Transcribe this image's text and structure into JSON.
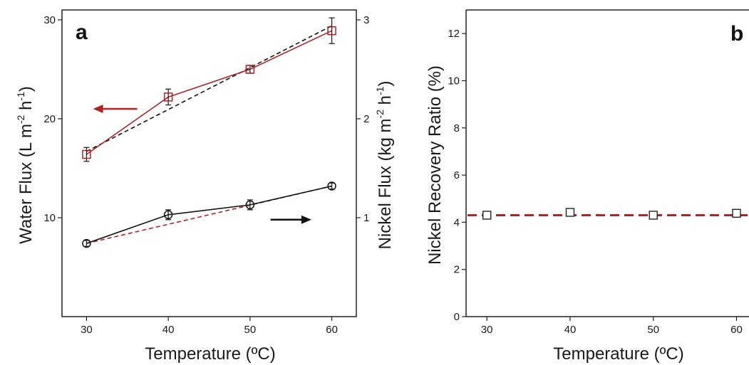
{
  "chart_data": [
    {
      "type": "line",
      "panel_label": "a",
      "xlabel": "Temperature (ºC)",
      "ylabel_left": {
        "main": "Water Flux (L m",
        "sup1": "-2",
        "mid": " h",
        "sup2": "-1",
        "end": ")"
      },
      "ylabel_right": {
        "main": "Nickel Flux (kg m",
        "sup1": "-2",
        "mid": " h",
        "sup2": "-1",
        "end": ")"
      },
      "xlim": [
        27,
        63
      ],
      "ylim_left": [
        0,
        31
      ],
      "ylim_right": [
        0,
        3.1
      ],
      "x_ticks": [
        30,
        40,
        50,
        60
      ],
      "y_left_ticks": [
        10,
        20,
        30
      ],
      "y_right_ticks": [
        1,
        2,
        3
      ],
      "series": [
        {
          "axis": "left",
          "marker": "square",
          "color": "#b22222",
          "x": [
            30,
            40,
            50,
            60
          ],
          "y": [
            16.4,
            22.2,
            25.0,
            28.9
          ],
          "err": [
            0.7,
            0.8,
            0.4,
            1.3
          ],
          "fit": {
            "x": [
              30,
              60
            ],
            "y": [
              16.7,
              29.4
            ],
            "color": "#111111"
          }
        },
        {
          "axis": "right",
          "marker": "circle",
          "color": "#111111",
          "x": [
            30,
            40,
            50,
            60
          ],
          "y": [
            0.74,
            1.03,
            1.13,
            1.32
          ],
          "err": [
            0.03,
            0.05,
            0.05,
            0.03
          ],
          "fit": {
            "x": [
              30,
              60
            ],
            "y": [
              0.74,
              1.32
            ],
            "color": "#b22222"
          }
        }
      ],
      "arrows": [
        {
          "direction": "left",
          "color": "#b22222",
          "x": [
            30.8,
            36.2
          ],
          "y_axis": "left",
          "y": 21.0
        },
        {
          "direction": "right",
          "color": "#111111",
          "x": [
            52.5,
            57.5
          ],
          "y_axis": "left",
          "y": 9.8
        }
      ]
    },
    {
      "type": "scatter",
      "panel_label": "b",
      "xlabel": "Temperature (ºC)",
      "ylabel": "Nickel Recovery Ratio (%)",
      "xlim": [
        27.5,
        61.5
      ],
      "ylim": [
        0,
        13
      ],
      "x_ticks": [
        30,
        40,
        50,
        60
      ],
      "y_ticks": [
        0,
        2,
        4,
        6,
        8,
        10,
        12
      ],
      "points": {
        "x": [
          30,
          40,
          50,
          60
        ],
        "y": [
          4.3,
          4.42,
          4.3,
          4.38
        ]
      },
      "mean_line": {
        "y": 4.3,
        "color": "#b22222",
        "style": "dashed"
      }
    }
  ]
}
